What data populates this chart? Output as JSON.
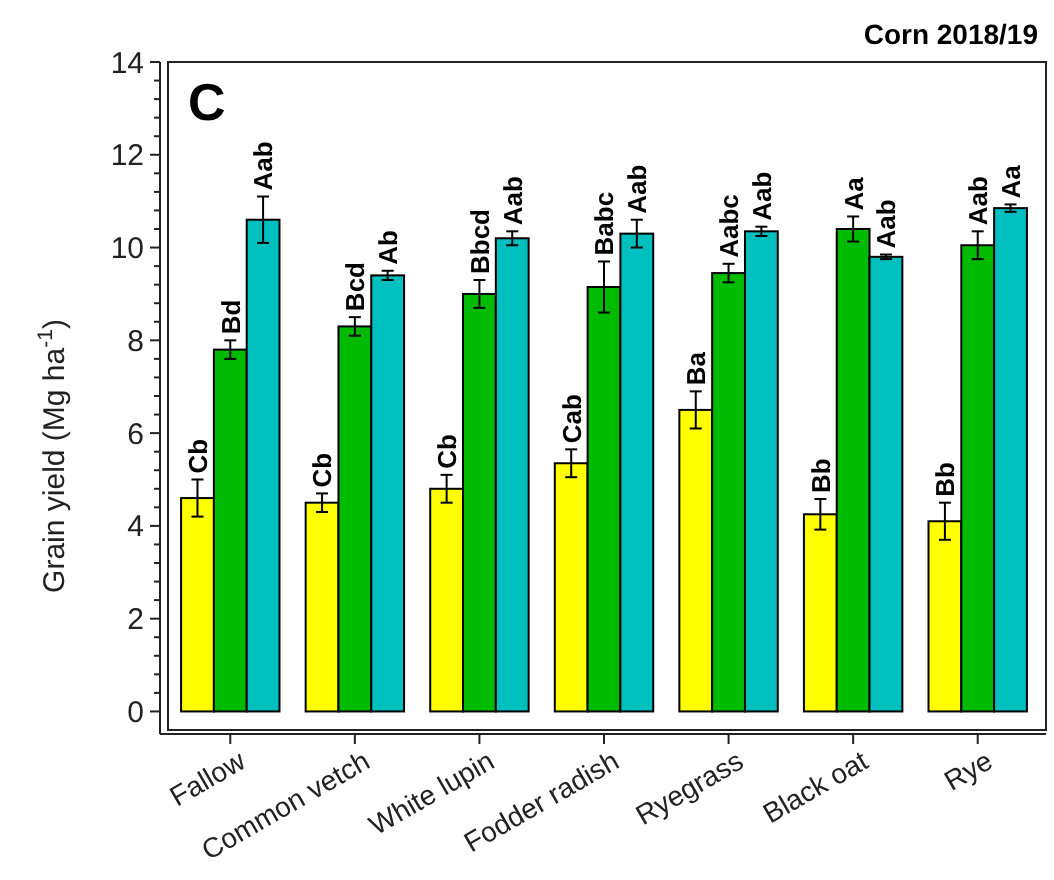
{
  "chart_data": {
    "type": "bar",
    "title": "Corn 2018/19",
    "ylabel": "Grain yield (Mg ha$^{-1}$)",
    "annotations": [
      "C"
    ],
    "categories": [
      "Fallow",
      "Common vetch",
      "White lupin",
      "Fodder radish",
      "Ryegrass",
      "Black oat",
      "Rye"
    ],
    "series": [
      {
        "color": "#ffff00",
        "values": [
          4.6,
          4.5,
          4.8,
          5.35,
          6.5,
          4.25,
          4.1
        ],
        "errors": [
          0.4,
          0.2,
          0.3,
          0.3,
          0.4,
          0.33,
          0.4
        ],
        "value_labels": [
          "Cb",
          "Cb",
          "Cb",
          "Cab",
          "Ba",
          "Bb",
          "Bb"
        ]
      },
      {
        "color": "#00bb00",
        "values": [
          7.8,
          8.3,
          9.0,
          9.15,
          9.45,
          10.4,
          10.05
        ],
        "errors": [
          0.2,
          0.2,
          0.3,
          0.55,
          0.2,
          0.27,
          0.3
        ],
        "value_labels": [
          "Bd",
          "Bcd",
          "Bbcd",
          "Babc",
          "Aabc",
          "Aa",
          "Aab"
        ]
      },
      {
        "color": "#00bfbf",
        "values": [
          10.6,
          9.4,
          10.2,
          10.3,
          10.35,
          9.8,
          10.85
        ],
        "errors": [
          0.5,
          0.1,
          0.15,
          0.3,
          0.1,
          0.05,
          0.08
        ],
        "value_labels": [
          "Aab",
          "Ab",
          "Aab",
          "Aab",
          "Aab",
          "Aab",
          "Aa"
        ]
      }
    ],
    "ylim": [
      -0.4,
      14
    ],
    "yticks": [
      0,
      {
        "value": 0.4,
        "label": null
      },
      {
        "value": 0.8,
        "label": null
      },
      {
        "value": 1.2,
        "label": null
      },
      {
        "value": 1.6,
        "label": null
      },
      2,
      {
        "value": 2.4,
        "label": null
      },
      {
        "value": 2.8,
        "label": null
      },
      {
        "value": 3.2,
        "label": null
      },
      {
        "value": 3.6,
        "label": null
      },
      4,
      {
        "value": 4.4,
        "label": null
      },
      {
        "value": 4.8,
        "label": null
      },
      {
        "value": 5.2,
        "label": null
      },
      {
        "value": 5.6,
        "label": null
      },
      6,
      {
        "value": 6.4,
        "label": null
      },
      {
        "value": 6.8,
        "label": null
      },
      {
        "value": 7.2,
        "label": null
      },
      {
        "value": 7.6,
        "label": null
      },
      8,
      {
        "value": 8.4,
        "label": null
      },
      {
        "value": 8.8,
        "label": null
      },
      {
        "value": 9.2,
        "label": null
      },
      {
        "value": 9.6,
        "label": null
      },
      10,
      {
        "value": 10.4,
        "label": null
      },
      {
        "value": 10.8,
        "label": null
      },
      {
        "value": 11.2,
        "label": null
      },
      {
        "value": 11.6,
        "label": null
      },
      12,
      {
        "value": 12.4,
        "label": null
      },
      {
        "value": 12.8,
        "label": null
      },
      {
        "value": 13.2,
        "label": null
      },
      {
        "value": 13.6,
        "label": null
      },
      14
    ]
  }
}
